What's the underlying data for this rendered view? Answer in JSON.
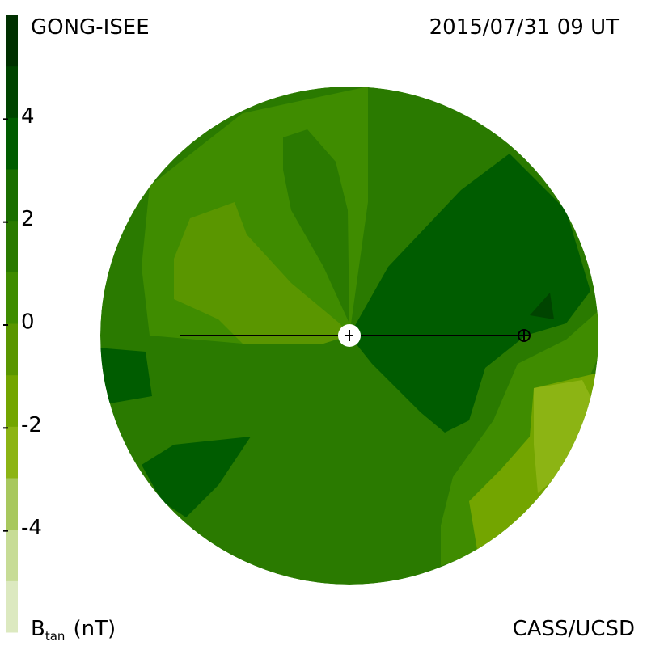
{
  "chart_data": {
    "type": "contour",
    "title": "GONG-ISEE",
    "subtitle": "2015/07/31 09 UT",
    "credit": "CASS/UCSD",
    "colorbar": {
      "label": "B",
      "label_subscript": "tan",
      "unit": "(nT)",
      "lim": [
        -6,
        6
      ],
      "ticks": [
        4,
        2,
        0,
        -2,
        -4
      ],
      "colors": [
        "#dce9c0",
        "#c7dc96",
        "#a8c85e",
        "#8cb414",
        "#73a500",
        "#5a9600",
        "#3f8c00",
        "#2a7a00",
        "#1a6e00",
        "#005c00",
        "#004400",
        "#003000"
      ]
    }
  }
}
